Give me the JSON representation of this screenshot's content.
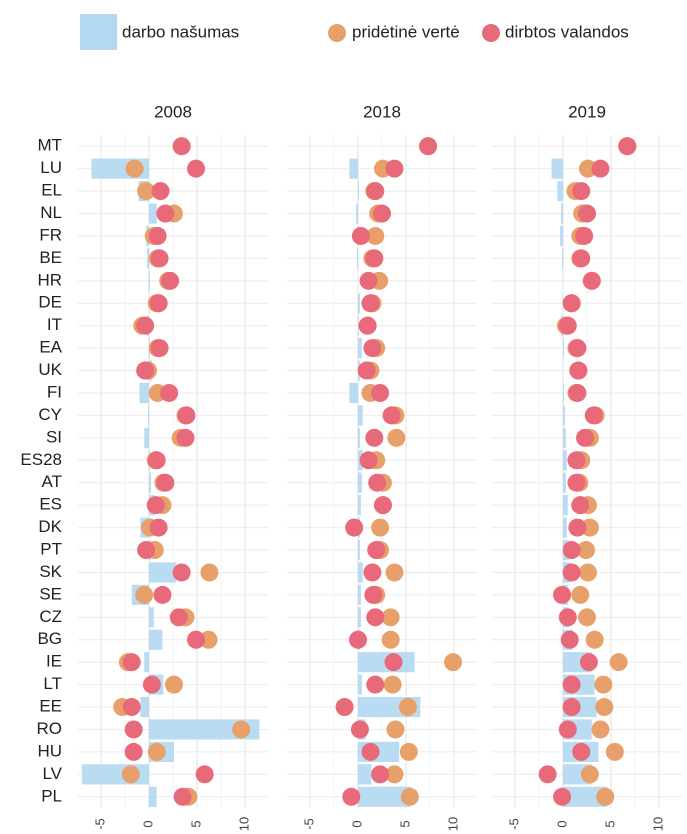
{
  "chart_data": [
    {
      "type": "dot-bar",
      "title": "2008",
      "categories": [
        "MT",
        "LU",
        "EL",
        "NL",
        "FR",
        "BE",
        "HR",
        "DE",
        "IT",
        "EA",
        "UK",
        "FI",
        "CY",
        "SI",
        "ES28",
        "AT",
        "ES",
        "DK",
        "PT",
        "SK",
        "SE",
        "CZ",
        "BG",
        "IE",
        "LT",
        "EE",
        "RO",
        "HU",
        "LV",
        "PL"
      ],
      "series": [
        {
          "name": "darbo našumas",
          "kind": "bar",
          "color": "#b3d8f2",
          "values": [
            0,
            -6.0,
            -1.1,
            0.8,
            -0.3,
            -0.2,
            0.1,
            0,
            -0.2,
            0.1,
            0.3,
            -1.0,
            -0.1,
            -0.5,
            0.1,
            0.2,
            0.6,
            -0.9,
            0.2,
            2.8,
            -1.8,
            0.5,
            1.4,
            -0.5,
            1.5,
            -0.9,
            11.5,
            2.6,
            -7.0,
            0.8
          ]
        },
        {
          "name": "pridėtinė vertė",
          "kind": "dot",
          "color": "#e8a06a",
          "values": [
            3.4,
            -1.5,
            -0.3,
            2.6,
            0.5,
            0.9,
            2.0,
            0.8,
            -0.7,
            0.9,
            -0.1,
            0.9,
            3.8,
            3.3,
            0.7,
            1.5,
            1.4,
            0.1,
            0.6,
            6.3,
            -0.5,
            3.8,
            6.2,
            -2.2,
            2.6,
            -2.8,
            9.6,
            0.8,
            -1.9,
            4.1
          ]
        },
        {
          "name": "dirbtos valandos",
          "kind": "dot",
          "color": "#e8697a",
          "values": [
            3.4,
            4.9,
            1.2,
            1.7,
            0.9,
            1.1,
            2.2,
            1.0,
            -0.4,
            1.1,
            -0.4,
            2.1,
            3.9,
            3.8,
            0.8,
            1.7,
            0.7,
            1.0,
            -0.3,
            3.4,
            1.4,
            3.1,
            4.9,
            -1.8,
            0.3,
            -1.8,
            -1.6,
            -1.6,
            5.8,
            3.5
          ]
        }
      ],
      "xlim": [
        -7.4,
        12.4
      ],
      "xticks": [
        -5,
        0,
        5,
        10
      ],
      "grid": true
    },
    {
      "type": "dot-bar",
      "title": "2018",
      "categories": [
        "MT",
        "LU",
        "EL",
        "NL",
        "FR",
        "BE",
        "HR",
        "DE",
        "IT",
        "EA",
        "UK",
        "FI",
        "CY",
        "SI",
        "ES28",
        "AT",
        "ES",
        "DK",
        "PT",
        "SK",
        "SE",
        "CZ",
        "BG",
        "IE",
        "LT",
        "EE",
        "RO",
        "HU",
        "LV",
        "PL"
      ],
      "series": [
        {
          "name": "darbo našumas",
          "kind": "bar",
          "color": "#b3d8f2",
          "values": [
            0,
            -0.9,
            0.1,
            -0.2,
            0.1,
            -0.1,
            0,
            0.2,
            0.1,
            0.4,
            0.2,
            -0.9,
            0.5,
            0.2,
            0.5,
            0.4,
            0.3,
            0.2,
            0.2,
            0.5,
            0.3,
            0.3,
            0.2,
            5.9,
            0.4,
            6.5,
            0.8,
            4.3,
            1.4,
            5.5
          ]
        },
        {
          "name": "pridėtinė vertė",
          "kind": "dot",
          "color": "#e8a06a",
          "values": [
            7.3,
            2.6,
            1.7,
            2.1,
            1.8,
            1.5,
            2.2,
            1.5,
            1.0,
            1.9,
            1.3,
            1.3,
            3.9,
            4.0,
            1.9,
            2.6,
            2.6,
            2.3,
            2.3,
            3.8,
            1.9,
            3.4,
            3.4,
            9.9,
            3.6,
            5.2,
            3.9,
            5.3,
            3.8,
            5.4
          ]
        },
        {
          "name": "dirbtos valandos",
          "kind": "dot",
          "color": "#e8697a",
          "values": [
            7.3,
            3.8,
            1.8,
            2.5,
            0.3,
            1.7,
            1.1,
            1.3,
            1.0,
            1.5,
            0.9,
            2.3,
            3.5,
            1.7,
            1.1,
            2.0,
            2.6,
            -0.4,
            1.9,
            1.5,
            1.6,
            1.8,
            0,
            3.7,
            1.8,
            -1.4,
            0.2,
            1.3,
            2.3,
            -0.7
          ]
        }
      ],
      "xlim": [
        -7.4,
        12.4
      ],
      "xticks": [
        -5,
        0,
        5,
        10
      ],
      "grid": true
    },
    {
      "type": "dot-bar",
      "title": "2019",
      "categories": [
        "MT",
        "LU",
        "EL",
        "NL",
        "FR",
        "BE",
        "HR",
        "DE",
        "IT",
        "EA",
        "UK",
        "FI",
        "CY",
        "SI",
        "ES28",
        "AT",
        "ES",
        "DK",
        "PT",
        "SK",
        "SE",
        "CZ",
        "BG",
        "IE",
        "LT",
        "EE",
        "RO",
        "HU",
        "LV",
        "PL"
      ],
      "series": [
        {
          "name": "darbo našumas",
          "kind": "bar",
          "color": "#b3d8f2",
          "values": [
            0,
            -1.2,
            -0.6,
            -0.2,
            -0.3,
            -0.1,
            0,
            0,
            -0.2,
            0.1,
            0,
            0.1,
            0.2,
            0.3,
            0.4,
            0.3,
            0.5,
            0.4,
            0.6,
            0.8,
            0.5,
            0.6,
            1.0,
            3.0,
            3.3,
            3.5,
            3.0,
            3.7,
            3.0,
            4.6
          ]
        },
        {
          "name": "pridėtinė vertė",
          "kind": "dot",
          "color": "#e8a06a",
          "values": [
            6.7,
            2.6,
            1.3,
            2.0,
            1.8,
            1.8,
            3.0,
            0.9,
            0.3,
            1.4,
            1.6,
            1.4,
            3.4,
            2.8,
            1.9,
            1.7,
            2.6,
            2.8,
            2.4,
            2.6,
            1.8,
            2.5,
            3.3,
            5.8,
            4.2,
            4.3,
            3.9,
            5.4,
            2.8,
            4.4
          ]
        },
        {
          "name": "dirbtos valandos",
          "kind": "dot",
          "color": "#e8697a",
          "values": [
            6.7,
            3.9,
            1.9,
            2.5,
            2.2,
            1.9,
            3.0,
            0.9,
            0.5,
            1.5,
            1.6,
            1.5,
            3.2,
            2.3,
            1.4,
            1.4,
            1.8,
            1.5,
            0.9,
            0.9,
            -0.1,
            0.5,
            0.7,
            2.7,
            0.9,
            0.9,
            0.5,
            1.9,
            -1.6,
            -0.1
          ]
        }
      ],
      "xlim": [
        -7.4,
        12.4
      ],
      "xticks": [
        -5,
        0,
        5,
        10
      ],
      "grid": true
    }
  ]
}
